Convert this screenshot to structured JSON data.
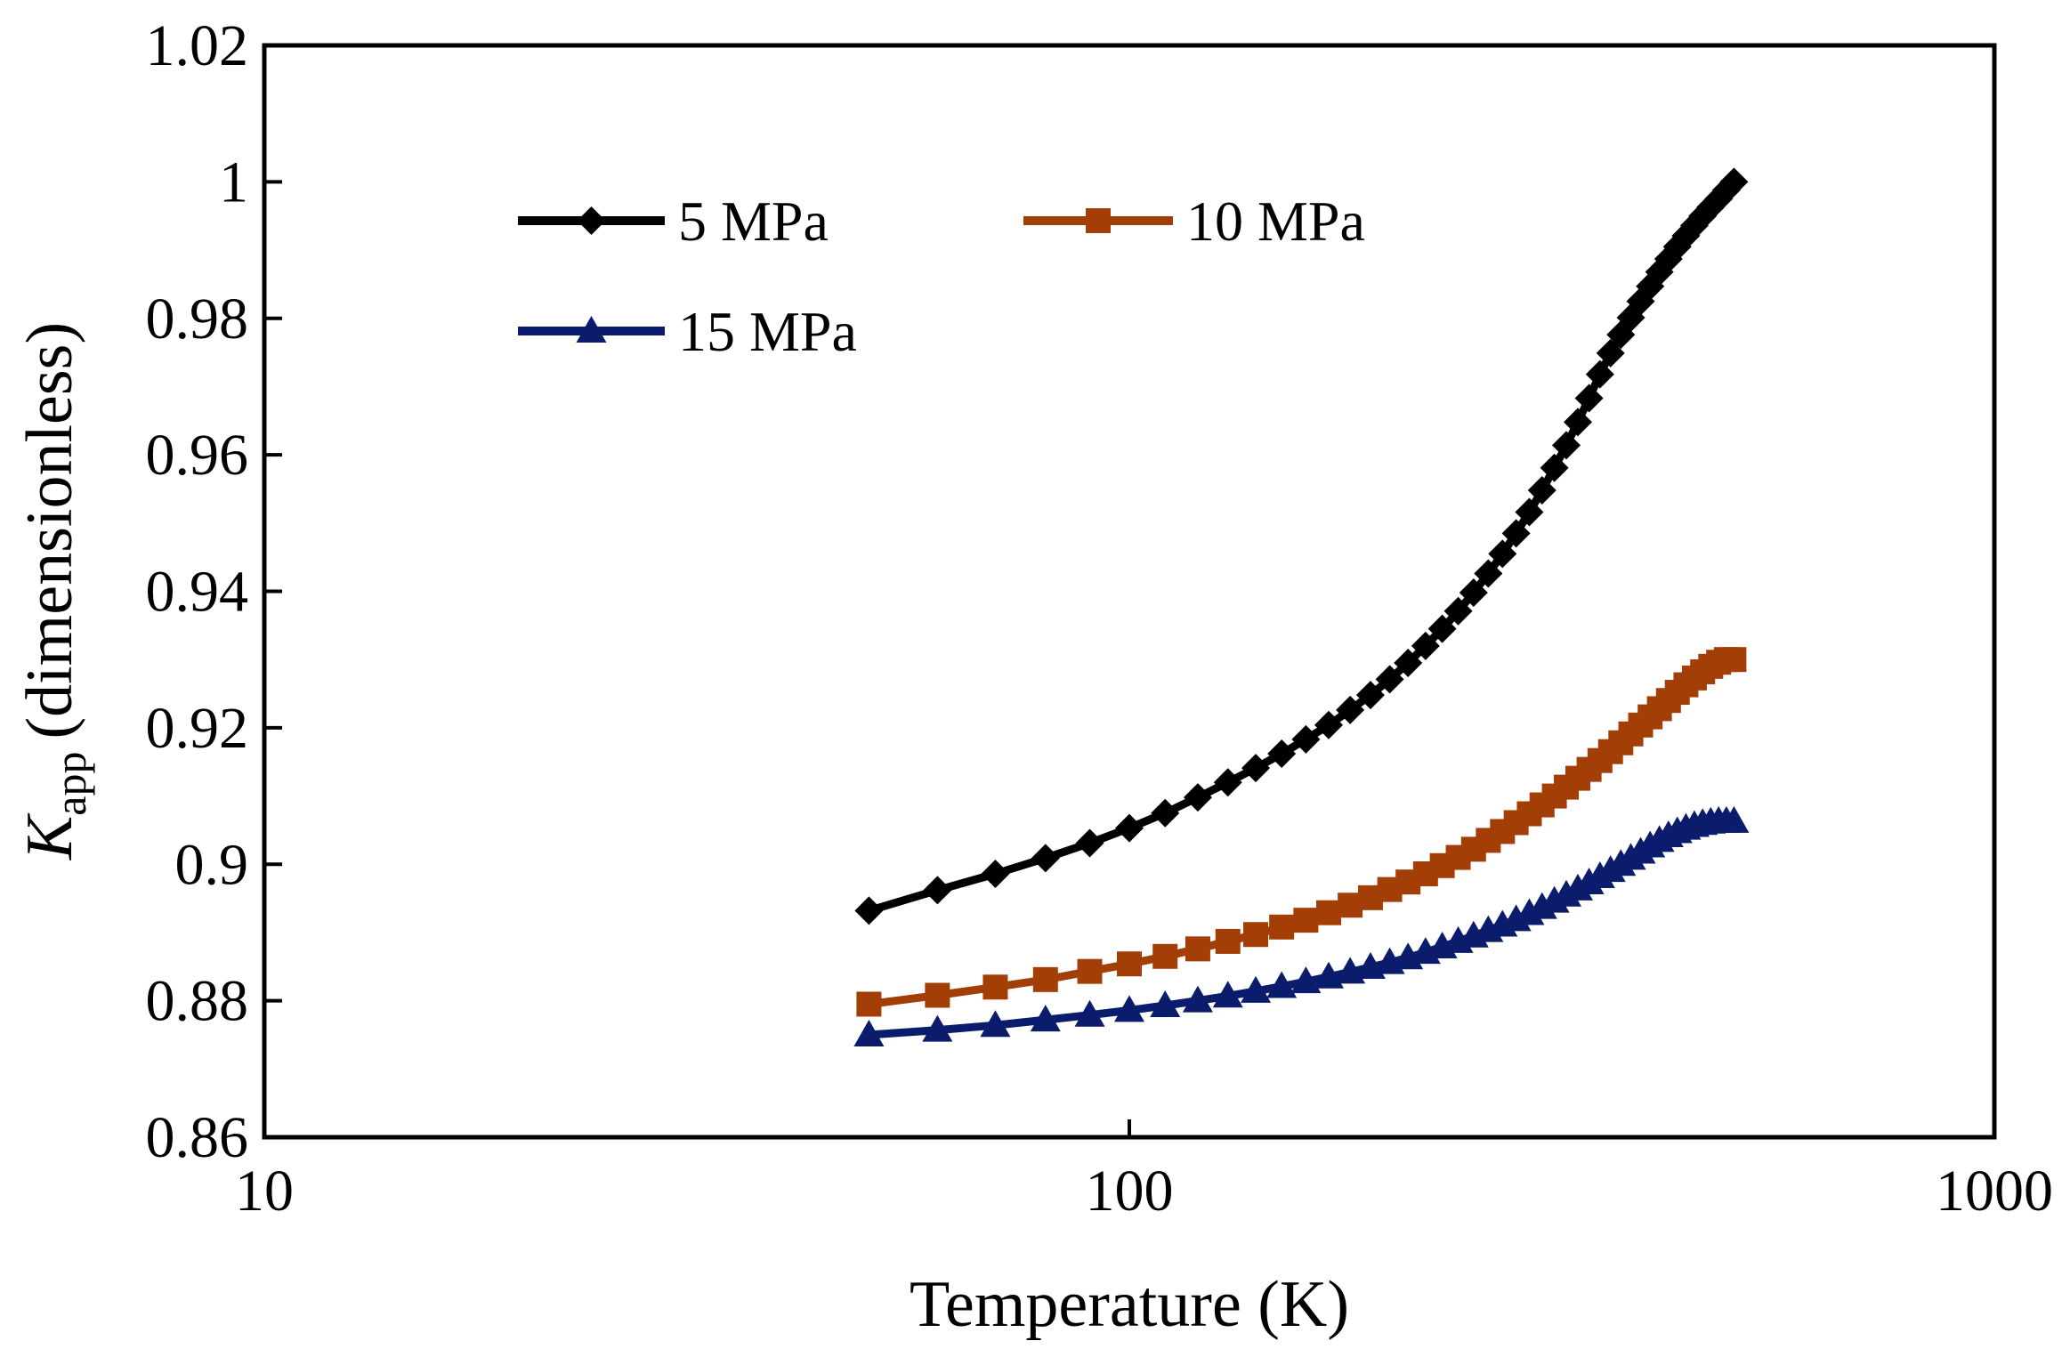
{
  "chart_data": {
    "type": "line",
    "xlabel": "Temperature (K)",
    "ylabel": {
      "symbol": "K",
      "subscript": "app",
      "text": "(dimensionless)"
    },
    "x_scale": "log",
    "xlim": [
      10,
      1000
    ],
    "ylim": [
      0.86,
      1.02
    ],
    "x_ticks": [
      10,
      100,
      1000
    ],
    "x_tick_labels": [
      "10",
      "100",
      "1000"
    ],
    "y_ticks": [
      0.86,
      0.88,
      0.9,
      0.92,
      0.94,
      0.96,
      0.98,
      1.0,
      1.02
    ],
    "y_tick_labels": [
      "0.86",
      "0.88",
      "0.9",
      "0.92",
      "0.94",
      "0.96",
      "0.98",
      "1",
      "1.02"
    ],
    "grid": false,
    "legend_position": "top-left",
    "series": [
      {
        "name": "5 MPa",
        "color": "#000000",
        "marker": "diamond",
        "x": [
          50,
          60,
          70,
          80,
          90,
          100,
          110,
          120,
          130,
          140,
          150,
          160,
          170,
          180,
          190,
          200,
          210,
          220,
          230,
          240,
          250,
          260,
          270,
          280,
          290,
          300,
          310,
          320,
          330,
          340,
          350,
          360,
          370,
          380,
          390,
          400,
          410,
          420,
          430,
          440,
          450,
          460,
          470,
          480,
          490,
          500
        ],
        "y": [
          0.8932,
          0.8962,
          0.8986,
          0.9009,
          0.9031,
          0.9053,
          0.9075,
          0.9098,
          0.912,
          0.9141,
          0.9162,
          0.9183,
          0.9204,
          0.9226,
          0.9248,
          0.9271,
          0.9295,
          0.932,
          0.9345,
          0.9371,
          0.9398,
          0.9426,
          0.9455,
          0.9485,
          0.9516,
          0.9548,
          0.9581,
          0.9614,
          0.9648,
          0.9683,
          0.9718,
          0.9749,
          0.9776,
          0.9801,
          0.9825,
          0.9847,
          0.9868,
          0.9887,
          0.9905,
          0.9921,
          0.9936,
          0.995,
          0.9963,
          0.9975,
          0.9988,
          1.0
        ]
      },
      {
        "name": "10 MPa",
        "color": "#A33F06",
        "marker": "square",
        "x": [
          50,
          60,
          70,
          80,
          90,
          100,
          110,
          120,
          130,
          140,
          150,
          160,
          170,
          180,
          190,
          200,
          210,
          220,
          230,
          240,
          250,
          260,
          270,
          280,
          290,
          300,
          310,
          320,
          330,
          340,
          350,
          360,
          370,
          380,
          390,
          400,
          410,
          420,
          430,
          440,
          450,
          460,
          470,
          480,
          490,
          500
        ],
        "y": [
          0.8795,
          0.8808,
          0.882,
          0.8831,
          0.8843,
          0.8854,
          0.8865,
          0.8876,
          0.8887,
          0.8897,
          0.8908,
          0.8918,
          0.8929,
          0.894,
          0.8951,
          0.8963,
          0.8974,
          0.8986,
          0.8998,
          0.901,
          0.9022,
          0.9035,
          0.9048,
          0.9061,
          0.9074,
          0.9087,
          0.91,
          0.9113,
          0.9126,
          0.9139,
          0.9152,
          0.9165,
          0.9178,
          0.9191,
          0.9204,
          0.9216,
          0.9228,
          0.924,
          0.9252,
          0.9263,
          0.9273,
          0.9282,
          0.929,
          0.9296,
          0.93,
          0.93
        ]
      },
      {
        "name": "15 MPa",
        "color": "#0A1C6B",
        "marker": "triangle",
        "x": [
          50,
          60,
          70,
          80,
          90,
          100,
          110,
          120,
          130,
          140,
          150,
          160,
          170,
          180,
          190,
          200,
          210,
          220,
          230,
          240,
          250,
          260,
          270,
          280,
          290,
          300,
          310,
          320,
          330,
          340,
          350,
          360,
          370,
          380,
          390,
          400,
          410,
          420,
          430,
          440,
          450,
          460,
          470,
          480,
          490,
          500
        ],
        "y": [
          0.875,
          0.8757,
          0.8764,
          0.8772,
          0.8779,
          0.8786,
          0.8793,
          0.88,
          0.8807,
          0.8814,
          0.8821,
          0.8828,
          0.8835,
          0.8842,
          0.8849,
          0.8856,
          0.8863,
          0.8871,
          0.8879,
          0.8887,
          0.8895,
          0.8903,
          0.8911,
          0.8919,
          0.8928,
          0.8937,
          0.8946,
          0.8955,
          0.8964,
          0.8973,
          0.8982,
          0.8991,
          0.9,
          0.9009,
          0.9018,
          0.9027,
          0.9035,
          0.9042,
          0.9048,
          0.9053,
          0.9057,
          0.906,
          0.9062,
          0.9063,
          0.9063,
          0.9063
        ]
      }
    ]
  }
}
